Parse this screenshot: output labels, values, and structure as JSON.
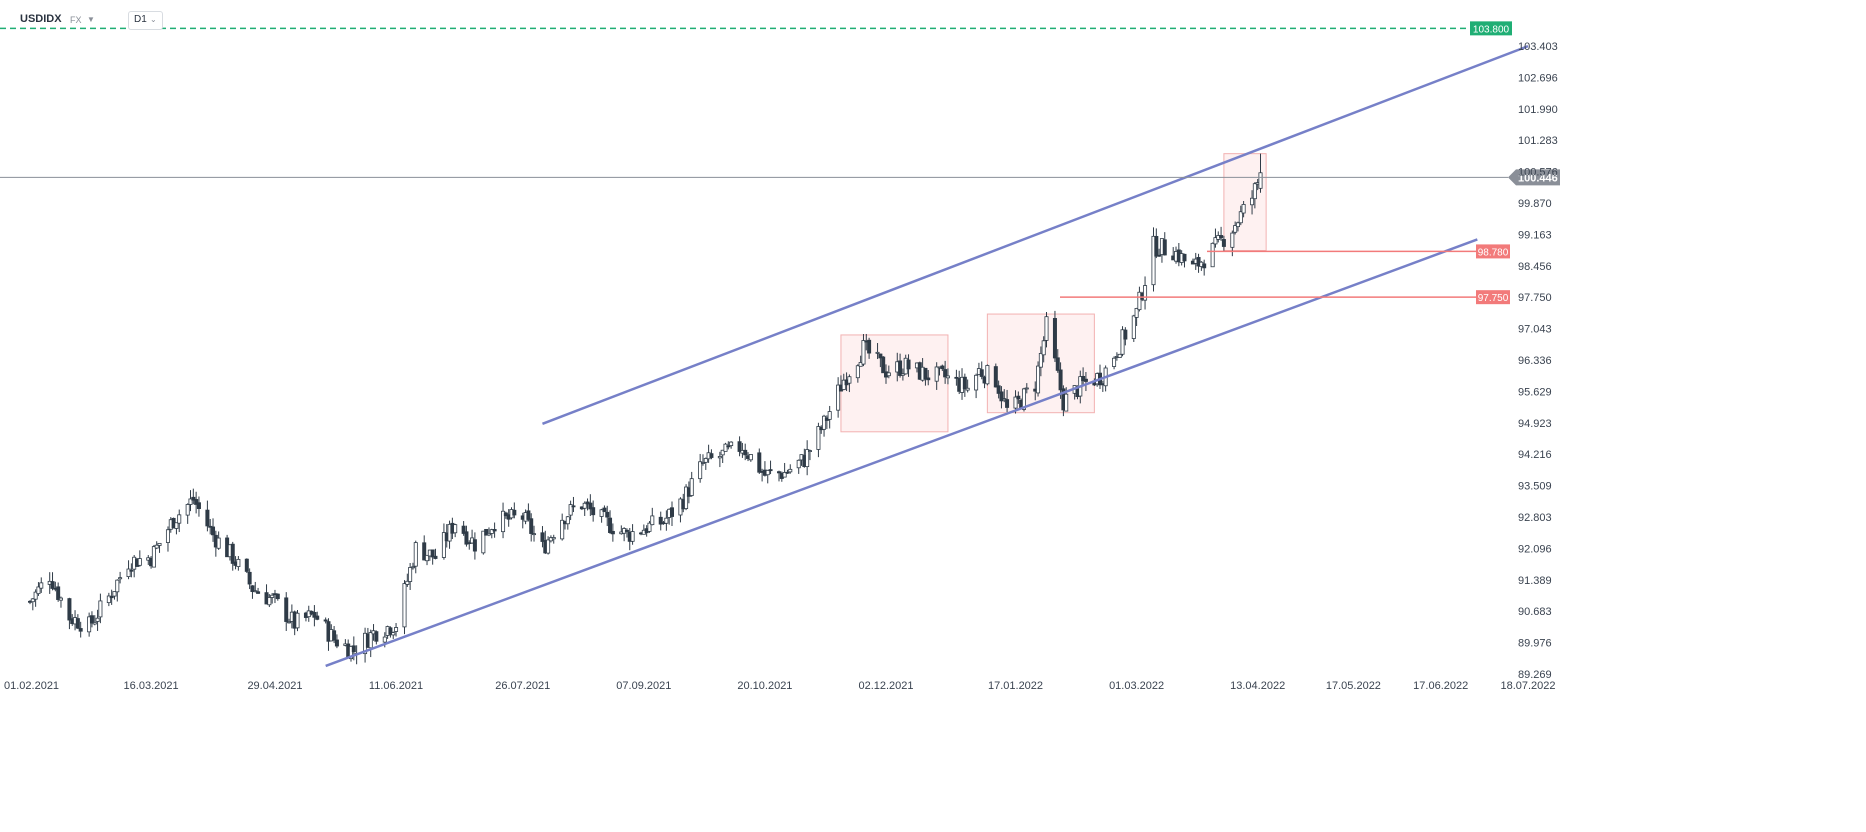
{
  "header": {
    "symbol": "USDIDX",
    "exchange": "FX",
    "timeframe": "D1"
  },
  "colors": {
    "bull": "#ffffff",
    "bear": "#2f3b47",
    "wick": "#2f3b47",
    "channel": "#7680c8",
    "level": "#f27a7a",
    "target": "#1fae74",
    "price_line": "#8a8f98",
    "zone_fill": "#fdecec",
    "zone_stroke": "#f2b1b1"
  },
  "chart_data": {
    "type": "candlestick",
    "symbol": "USDIDX",
    "timeframe": "D1",
    "ylim": [
      89.269,
      103.8
    ],
    "y_ticks": [
      "103.403",
      "102.696",
      "101.990",
      "101.283",
      "100.576",
      "99.870",
      "99.163",
      "98.456",
      "97.750",
      "97.043",
      "96.336",
      "95.629",
      "94.923",
      "94.216",
      "93.509",
      "92.803",
      "92.096",
      "91.389",
      "90.683",
      "89.976",
      "89.269"
    ],
    "x_ticks": [
      "01.02.2021",
      "16.03.2021",
      "29.04.2021",
      "11.06.2021",
      "26.07.2021",
      "07.09.2021",
      "20.10.2021",
      "02.12.2021",
      "17.01.2022",
      "01.03.2022",
      "13.04.2022",
      "17.05.2022",
      "17.06.2022",
      "18.07.2022"
    ],
    "current_price": "100.446",
    "current_price_value": 100.446,
    "levels": [
      {
        "label": "103.800",
        "value": 103.8,
        "kind": "target"
      },
      {
        "label": "98.780",
        "value": 98.78,
        "kind": "resistance"
      },
      {
        "label": "97.750",
        "value": 97.75,
        "kind": "support"
      }
    ],
    "channel": {
      "upper": [
        [
          "02.08.2021",
          94.9
        ],
        [
          "18.07.2022",
          103.4
        ]
      ],
      "lower": [
        [
          "17.05.2021",
          89.45
        ],
        [
          "30.06.2022",
          99.05
        ]
      ]
    },
    "zones": [
      {
        "from": "16.11.2021",
        "to": "24.12.2021",
        "low": 94.72,
        "high": 96.9
      },
      {
        "from": "07.01.2022",
        "to": "14.02.2022",
        "low": 95.15,
        "high": 97.37
      },
      {
        "from": "01.04.2022",
        "to": "16.04.2022",
        "low": 98.8,
        "high": 100.98
      }
    ],
    "anchors": [
      [
        "01.02.2021",
        90.9
      ],
      [
        "08.02.2021",
        91.5
      ],
      [
        "15.02.2021",
        90.55
      ],
      [
        "22.02.2021",
        90.35
      ],
      [
        "01.03.2021",
        91.0
      ],
      [
        "08.03.2021",
        91.8
      ],
      [
        "16.03.2021",
        91.9
      ],
      [
        "24.03.2021",
        92.75
      ],
      [
        "31.03.2021",
        93.2
      ],
      [
        "07.04.2021",
        92.4
      ],
      [
        "14.04.2021",
        91.9
      ],
      [
        "21.04.2021",
        91.2
      ],
      [
        "29.04.2021",
        90.9
      ],
      [
        "06.05.2021",
        90.4
      ],
      [
        "13.05.2021",
        90.6
      ],
      [
        "20.05.2021",
        90.05
      ],
      [
        "27.05.2021",
        89.8
      ],
      [
        "03.06.2021",
        90.2
      ],
      [
        "11.06.2021",
        90.4
      ],
      [
        "18.06.2021",
        92.1
      ],
      [
        "25.06.2021",
        91.9
      ],
      [
        "02.07.2021",
        92.7
      ],
      [
        "09.07.2021",
        92.2
      ],
      [
        "16.07.2021",
        92.7
      ],
      [
        "26.07.2021",
        92.8
      ],
      [
        "02.08.2021",
        92.1
      ],
      [
        "09.08.2021",
        92.8
      ],
      [
        "16.08.2021",
        93.1
      ],
      [
        "23.08.2021",
        92.75
      ],
      [
        "01.09.2021",
        92.4
      ],
      [
        "07.09.2021",
        92.55
      ],
      [
        "14.09.2021",
        92.7
      ],
      [
        "21.09.2021",
        93.2
      ],
      [
        "28.09.2021",
        94.0
      ],
      [
        "05.10.2021",
        94.2
      ],
      [
        "12.10.2021",
        94.4
      ],
      [
        "20.10.2021",
        93.75
      ],
      [
        "27.10.2021",
        93.8
      ],
      [
        "03.11.2021",
        94.1
      ],
      [
        "10.11.2021",
        94.9
      ],
      [
        "17.11.2021",
        95.9
      ],
      [
        "24.11.2021",
        96.6
      ],
      [
        "02.12.2021",
        96.1
      ],
      [
        "09.12.2021",
        96.2
      ],
      [
        "16.12.2021",
        96.0
      ],
      [
        "23.12.2021",
        95.95
      ],
      [
        "31.12.2021",
        95.7
      ],
      [
        "04.01.2022",
        96.1
      ],
      [
        "10.01.2022",
        95.9
      ],
      [
        "14.01.2022",
        95.2
      ],
      [
        "17.01.2022",
        95.3
      ],
      [
        "24.01.2022",
        95.8
      ],
      [
        "28.01.2022",
        97.1
      ],
      [
        "03.02.2022",
        95.4
      ],
      [
        "10.02.2022",
        95.8
      ],
      [
        "17.02.2022",
        96.0
      ],
      [
        "24.02.2022",
        96.8
      ],
      [
        "01.03.2022",
        97.4
      ],
      [
        "07.03.2022",
        98.9
      ],
      [
        "14.03.2022",
        98.8
      ],
      [
        "21.03.2022",
        98.4
      ],
      [
        "28.03.2022",
        98.8
      ],
      [
        "04.04.2022",
        99.3
      ],
      [
        "11.04.2022",
        100.0
      ],
      [
        "14.04.2022",
        100.5
      ]
    ]
  }
}
